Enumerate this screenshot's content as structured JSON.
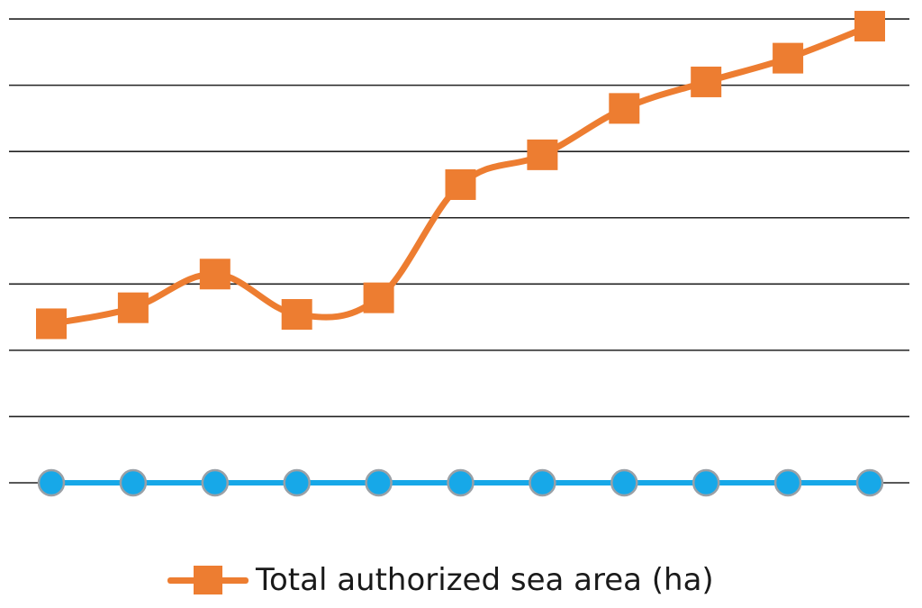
{
  "chart_data": {
    "type": "line",
    "x": [
      1,
      2,
      3,
      4,
      5,
      6,
      7,
      8,
      9,
      10,
      11
    ],
    "series": [
      {
        "name": "Total authorized sea area (ha)",
        "values": [
          2.88,
          3.17,
          3.78,
          3.05,
          3.35,
          5.4,
          5.94,
          6.78,
          7.26,
          7.69,
          8.27
        ],
        "color": "#ED7D31",
        "marker": "square"
      },
      {
        "values": [
          0,
          0,
          0,
          0,
          0,
          0,
          0,
          0,
          0,
          0,
          0
        ],
        "color": "#17A8E8",
        "marker": "circle"
      }
    ],
    "ylim": [
      0,
      8.6
    ],
    "y_gridlines": [
      0,
      1.2,
      2.4,
      3.6,
      4.8,
      6.0,
      7.2,
      8.4
    ],
    "grid": true,
    "legend": "bottom",
    "title": "",
    "xlabel": "",
    "ylabel": ""
  },
  "legend": {
    "label": "Total authorized sea area (ha)"
  }
}
